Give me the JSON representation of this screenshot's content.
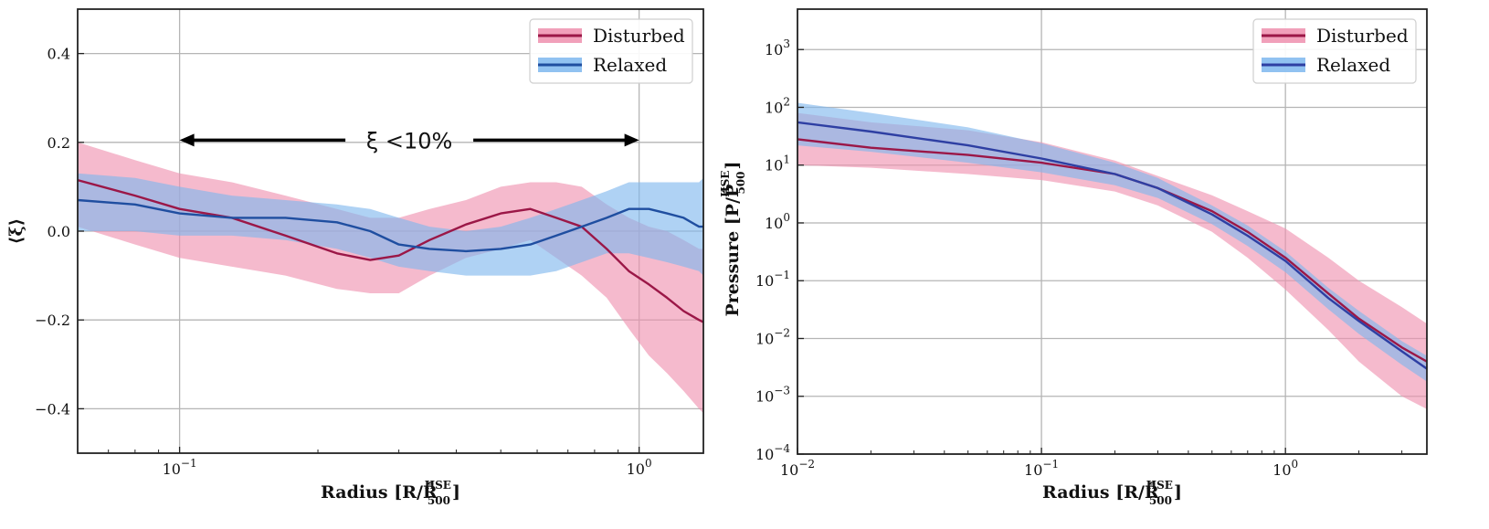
{
  "chart_data": [
    {
      "type": "line",
      "xscale": "log",
      "xlim": [
        0.06,
        1.38
      ],
      "ylim": [
        -0.5,
        0.5
      ],
      "xlabel": "Radius [R/R̂",
      "xlabel_sup": "HSE",
      "xlabel_sub": "500",
      "xlabel_end": "]",
      "ylabel": "⟨ξ⟩",
      "grid": true,
      "xticks": [
        0.1,
        1.0
      ],
      "xtick_labels": [
        {
          "base": "10",
          "exp": "−1"
        },
        {
          "base": "10",
          "exp": "0"
        }
      ],
      "yticks": [
        0.4,
        0.2,
        0.0,
        -0.2,
        -0.4
      ],
      "ytick_labels": [
        "0.4",
        "0.2",
        "0.0",
        "−0.2",
        "−0.4"
      ],
      "legend": {
        "placement": "top-right",
        "entries": [
          "Disturbed",
          "Relaxed"
        ]
      },
      "annotation": {
        "text": "ξ <10%",
        "from_x": 0.1,
        "to_x": 1.0,
        "y": 0.205
      },
      "series": [
        {
          "name": "Disturbed",
          "color": "#9b1747",
          "band_color": "#ef8fae",
          "x": [
            0.06,
            0.08,
            0.1,
            0.13,
            0.17,
            0.22,
            0.26,
            0.3,
            0.35,
            0.42,
            0.5,
            0.58,
            0.66,
            0.75,
            0.85,
            0.95,
            1.05,
            1.15,
            1.25,
            1.35,
            1.38
          ],
          "y": [
            0.115,
            0.08,
            0.05,
            0.03,
            -0.01,
            -0.05,
            -0.065,
            -0.055,
            -0.02,
            0.015,
            0.04,
            0.05,
            0.03,
            0.01,
            -0.04,
            -0.09,
            -0.12,
            -0.15,
            -0.18,
            -0.2,
            -0.205
          ],
          "lower": [
            0.01,
            -0.03,
            -0.06,
            -0.08,
            -0.1,
            -0.13,
            -0.14,
            -0.14,
            -0.1,
            -0.06,
            -0.04,
            -0.02,
            -0.06,
            -0.1,
            -0.15,
            -0.22,
            -0.28,
            -0.32,
            -0.36,
            -0.4,
            -0.41
          ],
          "upper": [
            0.2,
            0.16,
            0.13,
            0.11,
            0.08,
            0.05,
            0.03,
            0.03,
            0.05,
            0.07,
            0.1,
            0.11,
            0.11,
            0.1,
            0.06,
            0.03,
            0.01,
            0.0,
            -0.02,
            -0.04,
            -0.04
          ]
        },
        {
          "name": "Relaxed",
          "color": "#1f4ea0",
          "band_color": "#7eb7ee",
          "x": [
            0.06,
            0.08,
            0.1,
            0.13,
            0.17,
            0.22,
            0.26,
            0.3,
            0.35,
            0.42,
            0.5,
            0.58,
            0.66,
            0.75,
            0.85,
            0.95,
            1.05,
            1.15,
            1.25,
            1.35,
            1.38
          ],
          "y": [
            0.07,
            0.06,
            0.04,
            0.03,
            0.03,
            0.02,
            0.0,
            -0.03,
            -0.04,
            -0.045,
            -0.04,
            -0.03,
            -0.01,
            0.01,
            0.03,
            0.05,
            0.05,
            0.04,
            0.03,
            0.01,
            0.01
          ],
          "lower": [
            0.0,
            0.0,
            -0.01,
            -0.01,
            -0.02,
            -0.04,
            -0.06,
            -0.08,
            -0.09,
            -0.1,
            -0.1,
            -0.1,
            -0.09,
            -0.07,
            -0.05,
            -0.05,
            -0.06,
            -0.07,
            -0.08,
            -0.09,
            -0.1
          ],
          "upper": [
            0.13,
            0.12,
            0.1,
            0.08,
            0.07,
            0.06,
            0.05,
            0.03,
            0.01,
            0.0,
            0.01,
            0.03,
            0.05,
            0.07,
            0.09,
            0.11,
            0.11,
            0.11,
            0.11,
            0.11,
            0.12
          ]
        }
      ]
    },
    {
      "type": "line",
      "xscale": "log",
      "yscale": "log",
      "xlim": [
        0.01,
        3.8
      ],
      "ylim": [
        0.0001,
        5000
      ],
      "xlabel": "Radius [R/R̂",
      "xlabel_sup": "HSE",
      "xlabel_sub": "500",
      "xlabel_end": "]",
      "ylabel": "Pressure [P/P̂",
      "ylabel_sup": "HSE",
      "ylabel_sub": "500",
      "ylabel_end": "]",
      "grid": true,
      "xticks": [
        0.01,
        0.1,
        1.0
      ],
      "xtick_labels": [
        {
          "base": "10",
          "exp": "−2"
        },
        {
          "base": "10",
          "exp": "−1"
        },
        {
          "base": "10",
          "exp": "0"
        }
      ],
      "yticks": [
        0.0001,
        0.001,
        0.01,
        0.1,
        1,
        10,
        100,
        1000
      ],
      "ytick_labels": [
        {
          "base": "10",
          "exp": "−4"
        },
        {
          "base": "10",
          "exp": "−3"
        },
        {
          "base": "10",
          "exp": "−2"
        },
        {
          "base": "10",
          "exp": "−1"
        },
        {
          "base": "10",
          "exp": "0"
        },
        {
          "base": "10",
          "exp": "1"
        },
        {
          "base": "10",
          "exp": "2"
        },
        {
          "base": "10",
          "exp": "3"
        }
      ],
      "legend": {
        "placement": "top-right",
        "entries": [
          "Disturbed",
          "Relaxed"
        ]
      },
      "series": [
        {
          "name": "Disturbed",
          "color": "#9b1747",
          "band_color": "#ef8fae",
          "x": [
            0.01,
            0.02,
            0.05,
            0.1,
            0.2,
            0.3,
            0.5,
            0.7,
            1.0,
            1.5,
            2.0,
            3.0,
            3.8
          ],
          "y": [
            28,
            20,
            15,
            11,
            7,
            4,
            1.6,
            0.7,
            0.25,
            0.06,
            0.022,
            0.007,
            0.004
          ],
          "lower": [
            10,
            9,
            7,
            5.5,
            3.5,
            2,
            0.7,
            0.25,
            0.07,
            0.014,
            0.004,
            0.001,
            0.0006
          ],
          "upper": [
            80,
            55,
            40,
            25,
            12,
            6.5,
            3,
            1.6,
            0.8,
            0.25,
            0.1,
            0.035,
            0.018
          ]
        },
        {
          "name": "Relaxed",
          "color": "#2e3fa3",
          "band_color": "#7eb7ee",
          "x": [
            0.01,
            0.02,
            0.05,
            0.1,
            0.2,
            0.3,
            0.5,
            0.7,
            1.0,
            1.5,
            2.0,
            3.0,
            3.8
          ],
          "y": [
            55,
            38,
            22,
            13,
            7,
            4,
            1.4,
            0.6,
            0.22,
            0.05,
            0.02,
            0.006,
            0.003
          ],
          "lower": [
            22,
            17,
            11,
            7.5,
            4.5,
            2.7,
            0.95,
            0.4,
            0.14,
            0.032,
            0.012,
            0.0035,
            0.0018
          ],
          "upper": [
            120,
            80,
            45,
            24,
            11,
            6,
            2,
            0.9,
            0.32,
            0.075,
            0.03,
            0.009,
            0.005
          ]
        }
      ]
    }
  ]
}
